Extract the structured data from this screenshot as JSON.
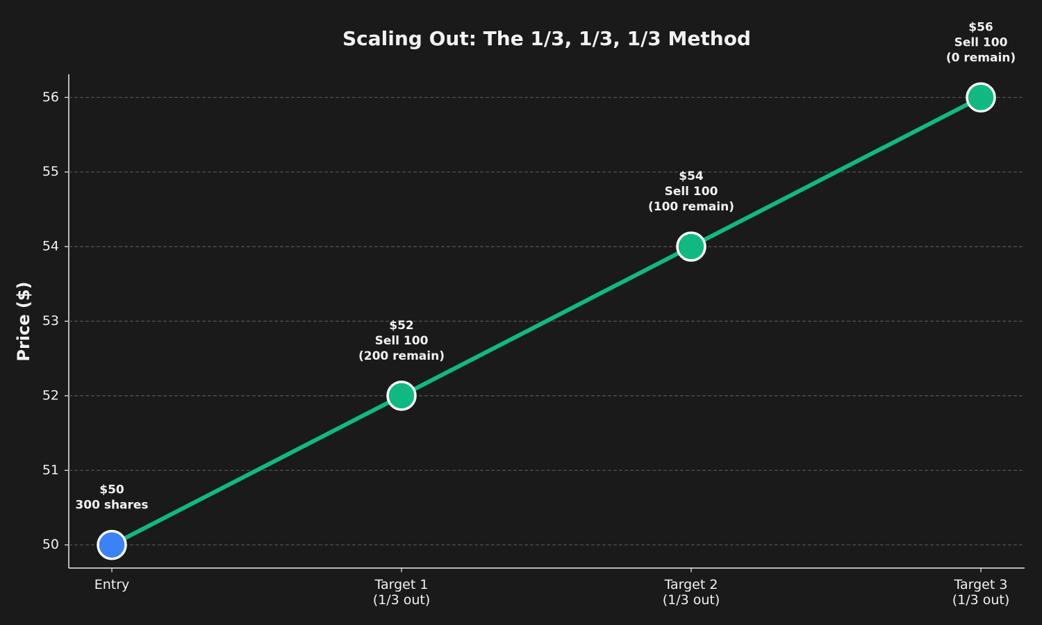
{
  "chart_data": {
    "type": "line",
    "title": "Scaling Out: The 1/3, 1/3, 1/3 Method",
    "y_label": "Price ($)",
    "categories": [
      "Entry",
      "Target 1\n(1/3 out)",
      "Target 2\n(1/3 out)",
      "Target 3\n(1/3 out)"
    ],
    "series": [
      {
        "color": "#10b981",
        "values": [
          50,
          52,
          54,
          56
        ],
        "value_labels": [
          "$50\n300 shares",
          "$52\nSell 100\n(200 remain)",
          "$54\nSell 100\n(100 remain)",
          "$56\nSell 100\n(0 remain)"
        ],
        "point_colors": [
          "#3b82f6",
          "#10b981",
          "#10b981",
          "#10b981"
        ]
      }
    ],
    "ylim": [
      49.69,
      56.31
    ],
    "yticks": [
      50,
      51,
      52,
      53,
      54,
      55,
      56
    ],
    "grid": true
  }
}
